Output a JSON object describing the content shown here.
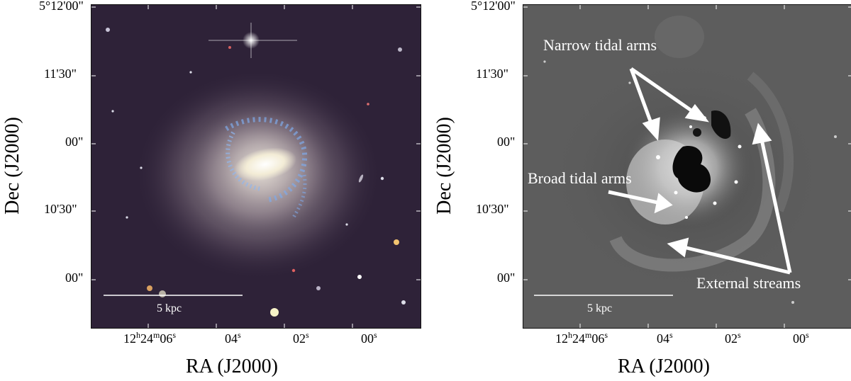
{
  "left_panel": {
    "ylabel": "Dec (J2000)",
    "xlabel": "RA (J2000)",
    "dec_ticks": [
      "5°12'00\"",
      "11'30\"",
      "00\"",
      "10'30\"",
      "00\""
    ],
    "ra_ticks": [
      {
        "base": "12",
        "h": "h",
        "mid": "24",
        "m": "m",
        "sec": "06",
        "s": "s"
      },
      {
        "base": "04",
        "s": "s"
      },
      {
        "base": "02",
        "s": "s"
      },
      {
        "base": "00",
        "s": "s"
      }
    ],
    "scale_bar_label": "5 kpc"
  },
  "right_panel": {
    "ylabel": "Dec (J2000)",
    "xlabel": "RA (J2000)",
    "dec_ticks": [
      "5°12'00\"",
      "11'30\"",
      "00\"",
      "10'30\"",
      "00\""
    ],
    "ra_ticks": [
      {
        "base": "12",
        "h": "h",
        "mid": "24",
        "m": "m",
        "sec": "06",
        "s": "s"
      },
      {
        "base": "04",
        "s": "s"
      },
      {
        "base": "02",
        "s": "s"
      },
      {
        "base": "00",
        "s": "s"
      }
    ],
    "scale_bar_label": "5 kpc",
    "annotations": {
      "narrow": "Narrow tidal arms",
      "broad": "Broad tidal arms",
      "external": "External streams"
    }
  },
  "colors": {
    "sky_left": "#2e2238",
    "sky_right": "#5d5d5d",
    "annotation": "#ffffff"
  }
}
